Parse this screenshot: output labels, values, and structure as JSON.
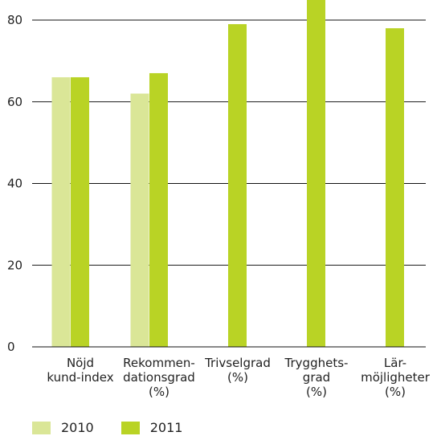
{
  "chart_data": {
    "type": "bar",
    "categories": [
      [
        "Nöjd",
        "kund-index"
      ],
      [
        "Rekommen-",
        "dationsgrad",
        "(%)"
      ],
      [
        "Trivselgrad",
        "(%)"
      ],
      [
        "Trygghets-",
        "grad",
        "(%)"
      ],
      [
        "Lär-",
        "möjligheter",
        "(%)"
      ]
    ],
    "series": [
      {
        "name": "2010",
        "color": "#dae697",
        "values": [
          66,
          62,
          null,
          null,
          null
        ]
      },
      {
        "name": "2011",
        "color": "#b9d325",
        "values": [
          66,
          67,
          79,
          85,
          78
        ]
      }
    ],
    "ylim": [
      0,
      80
    ],
    "yticks": [
      0,
      20,
      40,
      60,
      80
    ],
    "grid": true,
    "legend_position": "bottom-left",
    "title": "",
    "xlabel": "",
    "ylabel": ""
  }
}
